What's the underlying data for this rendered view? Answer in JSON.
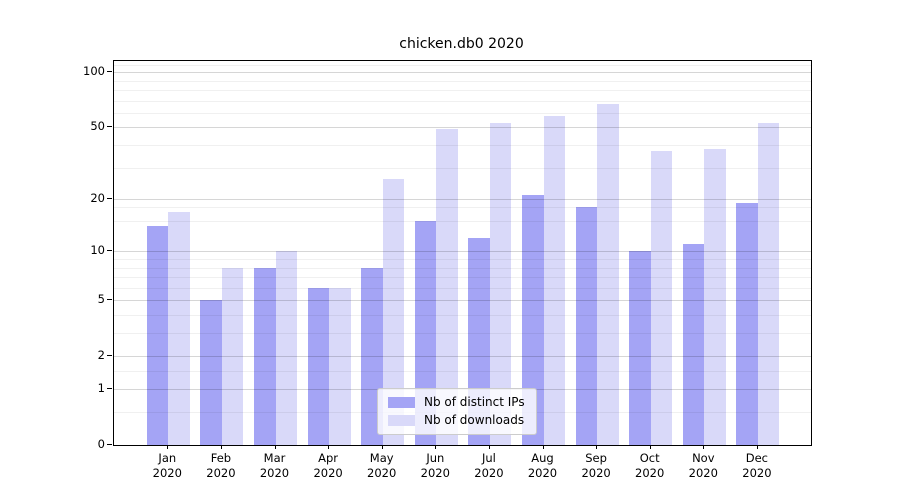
{
  "title": "chicken.db0 2020",
  "legend": {
    "items": [
      {
        "label": "Nb of distinct IPs",
        "color": "#a4a4f5"
      },
      {
        "label": "Nb of downloads",
        "color": "#d9d9f9"
      }
    ]
  },
  "chart_data": {
    "type": "bar",
    "title": "chicken.db0 2020",
    "categories": [
      "Jan",
      "Feb",
      "Mar",
      "Apr",
      "May",
      "Jun",
      "Jul",
      "Aug",
      "Sep",
      "Oct",
      "Nov",
      "Dec"
    ],
    "year": "2020",
    "series": [
      {
        "name": "Nb of distinct IPs",
        "color": "#a4a4f5",
        "values": [
          14,
          5,
          8,
          6,
          8,
          15,
          12,
          21,
          18,
          10,
          11,
          19
        ]
      },
      {
        "name": "Nb of downloads",
        "color": "#d9d9f9",
        "values": [
          17,
          8,
          10,
          6,
          26,
          49,
          53,
          58,
          67,
          37,
          38,
          53
        ]
      }
    ],
    "xlabel": "",
    "ylabel": "",
    "y_axis": {
      "scale": "log1p",
      "tick_values": [
        0,
        1,
        2,
        5,
        10,
        20,
        50,
        100
      ],
      "minor_tick_values": [
        0.5,
        1.5,
        3,
        4,
        6,
        7,
        8,
        9,
        15,
        18,
        30,
        40,
        60,
        70,
        80,
        90,
        110
      ],
      "ylim": [
        0,
        115
      ]
    },
    "grid": true,
    "legend_position": "lower center"
  }
}
